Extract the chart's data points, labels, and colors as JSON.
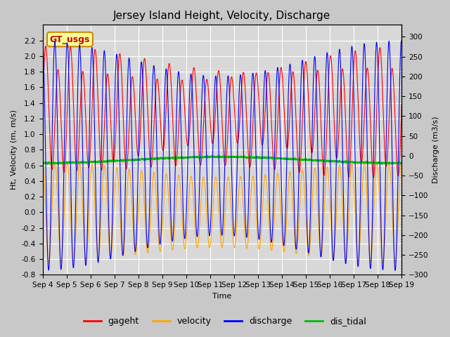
{
  "title": "Jersey Island Height, Velocity, Discharge",
  "ylabel_left": "Ht, Velocity (m, m/s)",
  "ylabel_right": "Discharge (m3/s)",
  "xlabel": "Time",
  "ylim_left": [
    -0.8,
    2.4
  ],
  "ylim_right": [
    -300,
    330
  ],
  "yticks_left": [
    -0.8,
    -0.6,
    -0.4,
    -0.2,
    0.0,
    0.2,
    0.4,
    0.6,
    0.8,
    1.0,
    1.2,
    1.4,
    1.6,
    1.8,
    2.0,
    2.2
  ],
  "yticks_right": [
    -300,
    -250,
    -200,
    -150,
    -100,
    -50,
    0,
    50,
    100,
    150,
    200,
    250,
    300
  ],
  "xtick_labels": [
    "Sep 4",
    "Sep 5",
    "Sep 6",
    "Sep 7",
    "Sep 8",
    "Sep 9",
    "Sep 10",
    "Sep 11",
    "Sep 12",
    "Sep 13",
    "Sep 14",
    "Sep 15",
    "Sep 16",
    "Sep 17",
    "Sep 18",
    "Sep 19"
  ],
  "fig_bg_color": "#c8c8c8",
  "plot_bg_color": "#d8d8d8",
  "legend_labels": [
    "gageht",
    "velocity",
    "discharge",
    "dis_tidal"
  ],
  "legend_colors": [
    "#ff0000",
    "#ffa500",
    "#0000ff",
    "#00bb00"
  ],
  "gt_usgs_text": "GT_usgs",
  "gt_usgs_bg": "#ffff99",
  "gt_usgs_border": "#cc8800",
  "title_fontsize": 11,
  "label_fontsize": 8,
  "tick_fontsize": 7.5,
  "legend_fontsize": 9
}
